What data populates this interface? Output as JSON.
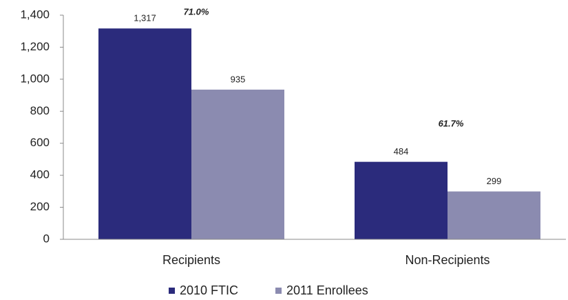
{
  "chart_data": {
    "type": "bar",
    "categories": [
      "Recipients",
      "Non-Recipients"
    ],
    "series": [
      {
        "name": "2010 FTIC",
        "color": "#2b2b7c",
        "values": [
          1317,
          484
        ],
        "value_labels": [
          "1,317",
          "484"
        ]
      },
      {
        "name": "2011 Enrollees",
        "color": "#8b8bb0",
        "values": [
          935,
          299
        ],
        "value_labels": [
          "935",
          "299"
        ]
      }
    ],
    "annotations": [
      "71.0%",
      "61.7%"
    ],
    "ylim": [
      0,
      1400
    ],
    "yticks": [
      0,
      200,
      400,
      600,
      800,
      {
        "value": 1000,
        "label": "1,000"
      },
      {
        "value": 1200,
        "label": "1,200"
      },
      {
        "value": 1400,
        "label": "1,400"
      }
    ],
    "legend": "bottom"
  }
}
